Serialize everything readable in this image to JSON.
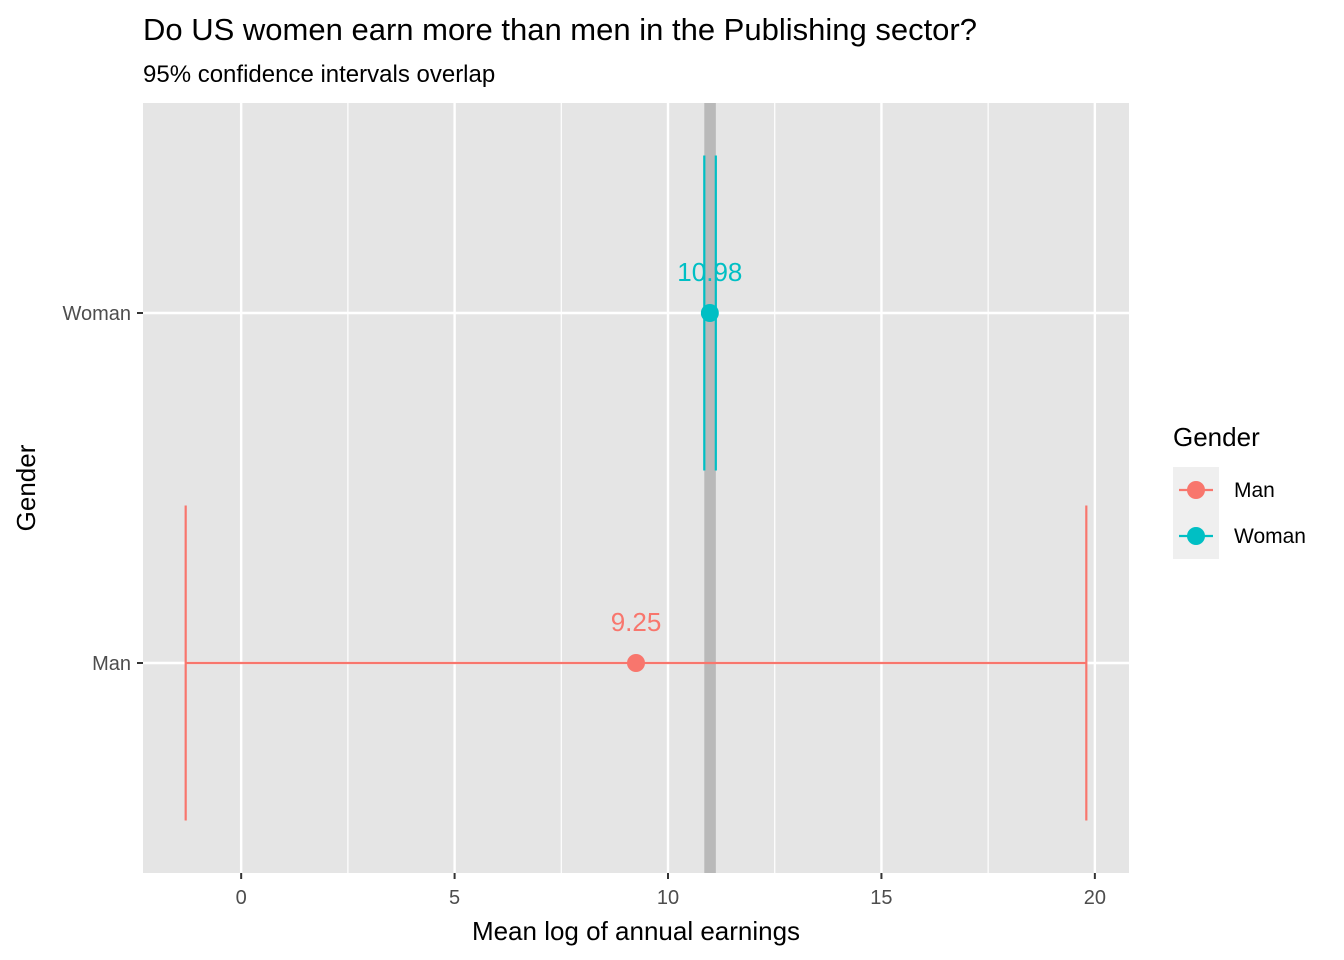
{
  "chart_data": {
    "type": "errorbar",
    "title": "Do US women earn more than men in the Publishing sector?",
    "subtitle": "95% confidence intervals overlap",
    "xlabel": "Mean log of annual earnings",
    "ylabel": "Gender",
    "xlim": [
      -2.3,
      20.8
    ],
    "x_ticks": [
      0,
      5,
      10,
      15,
      20
    ],
    "categories": [
      "Man",
      "Woman"
    ],
    "series": [
      {
        "name": "Man",
        "category": "Man",
        "mean": 9.25,
        "ci": [
          -1.3,
          19.8
        ],
        "label": "9.25",
        "color": "#F8766D"
      },
      {
        "name": "Woman",
        "category": "Woman",
        "mean": 10.98,
        "ci": [
          10.85,
          11.12
        ],
        "label": "10.98",
        "color": "#00BFC4"
      }
    ],
    "overlap_band": [
      10.85,
      11.12
    ],
    "legend": {
      "title": "Gender",
      "position": "right"
    },
    "grid": true
  }
}
